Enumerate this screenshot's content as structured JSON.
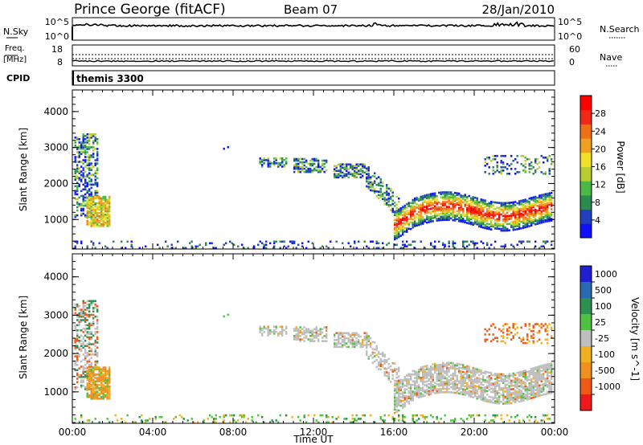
{
  "header": {
    "station": "Prince George (fitACF)",
    "beam": "Beam 07",
    "date": "28/Jan/2010"
  },
  "noise_panel": {
    "left_label": "N.Sky",
    "left_ticks": [
      "10^5",
      "10^0"
    ],
    "right_label": "N.Search",
    "right_ticks": [
      "10^5",
      "10^0"
    ]
  },
  "freq_panel": {
    "left_label_1": "Freq.",
    "left_label_2": "[MHz]",
    "left_ticks": [
      "18",
      "8"
    ],
    "right_label": "Nave",
    "right_ticks": [
      "60",
      "0"
    ]
  },
  "cpid_panel": {
    "label": "CPID",
    "program": "themis 3300"
  },
  "chart_data": [
    {
      "type": "heatmap",
      "panel": "power",
      "ylabel": "Slant Range [km]",
      "xlabel": "",
      "ylim": [
        180,
        4600
      ],
      "xlim": [
        0,
        24
      ],
      "y_ticks": [
        "1000",
        "2000",
        "3000",
        "4000"
      ],
      "x_ticks": [
        "00:00",
        "04:00",
        "08:00",
        "12:00",
        "16:00",
        "20:00",
        "00:00"
      ],
      "colorbar": {
        "label": "Power [dB]",
        "ticks": [
          "4",
          "8",
          "12",
          "16",
          "20",
          "24",
          "28"
        ],
        "colors": [
          "#1010ff",
          "#2040c0",
          "#2a8a50",
          "#4cb848",
          "#b8cc30",
          "#f0e028",
          "#f0a020",
          "#f07018",
          "#f02818",
          "#ff0000"
        ]
      }
    },
    {
      "type": "heatmap",
      "panel": "velocity",
      "ylabel": "Slant Range [km]",
      "xlabel": "Time UT",
      "ylim": [
        180,
        4600
      ],
      "xlim": [
        0,
        24
      ],
      "y_ticks": [
        "1000",
        "2000",
        "3000",
        "4000"
      ],
      "x_ticks": [
        "00:00",
        "04:00",
        "08:00",
        "12:00",
        "16:00",
        "20:00",
        "00:00"
      ],
      "colorbar": {
        "label": "Velocity [m s^-1]",
        "ticks": [
          "1000",
          "500",
          "100",
          "25",
          "-25",
          "-100",
          "-500",
          "-1000"
        ],
        "colors": [
          "#2020d0",
          "#2a6ab0",
          "#2e9050",
          "#50c040",
          "#bebebe",
          "#f0b020",
          "#f09020",
          "#f05818",
          "#f01818"
        ]
      }
    }
  ]
}
